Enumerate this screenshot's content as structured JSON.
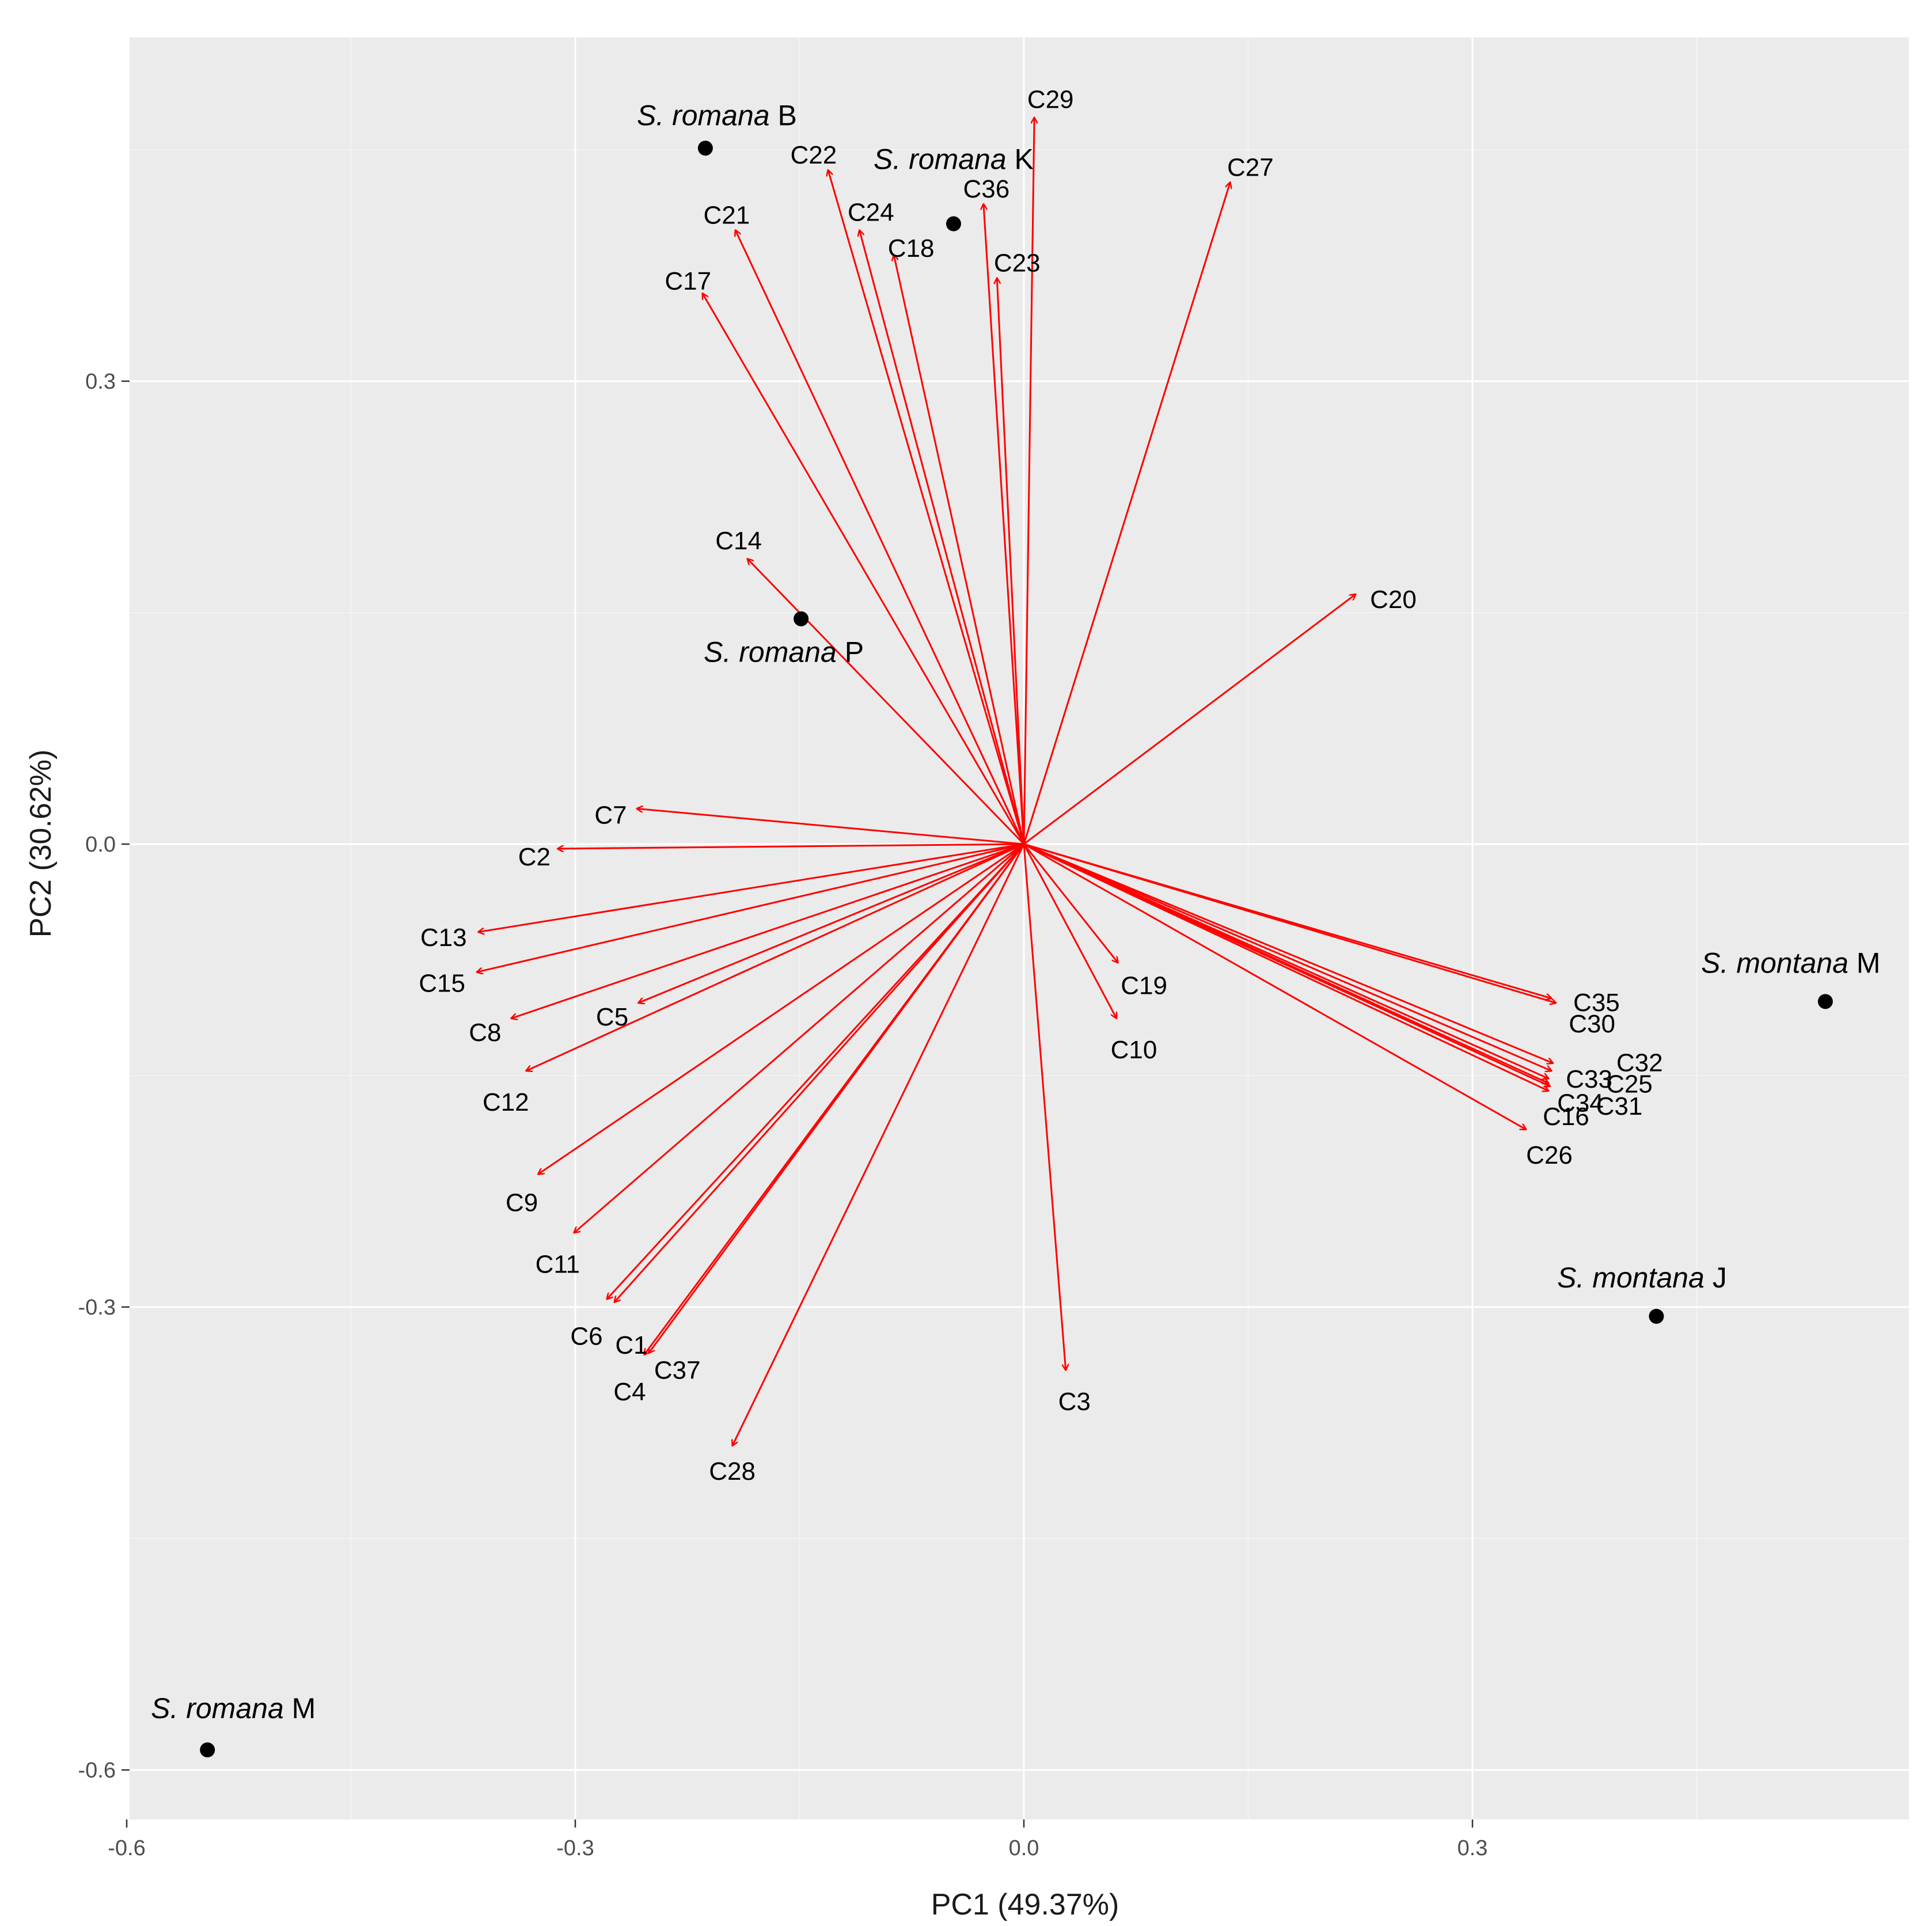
{
  "chart_data": {
    "type": "scatter",
    "subtype": "pca-biplot",
    "xlabel": "PC1 (49.37%)",
    "ylabel": "PC2 (30.62%)",
    "xlim": [
      -0.6,
      0.59
    ],
    "ylim": [
      -0.64,
      0.525
    ],
    "x_ticks": [
      {
        "value": -0.6,
        "label": "-0.6"
      },
      {
        "value": -0.3,
        "label": "-0.3"
      },
      {
        "value": 0.0,
        "label": "0.0"
      },
      {
        "value": 0.3,
        "label": "0.3"
      }
    ],
    "y_ticks": [
      {
        "value": -0.6,
        "label": "-0.6"
      },
      {
        "value": -0.3,
        "label": "-0.3"
      },
      {
        "value": 0.0,
        "label": "0.0"
      },
      {
        "value": 0.3,
        "label": "0.3"
      }
    ],
    "grid": true,
    "arrow_color": "#ff0000",
    "point_color": "#000000",
    "panel_color": "#ebebeb",
    "samples": [
      {
        "species": "S. romana",
        "code": "B",
        "x": -0.213,
        "y": 0.451
      },
      {
        "species": "S. romana",
        "code": "K",
        "x": -0.047,
        "y": 0.402
      },
      {
        "species": "S. romana",
        "code": "P",
        "x": -0.149,
        "y": 0.146
      },
      {
        "species": "S. romana",
        "code": "M",
        "x": -0.546,
        "y": -0.587
      },
      {
        "species": "S. montana",
        "code": "M",
        "x": 0.536,
        "y": -0.102
      },
      {
        "species": "S. montana",
        "code": "J",
        "x": 0.423,
        "y": -0.306
      }
    ],
    "loadings": [
      {
        "name": "C1",
        "x": -0.274,
        "y": -0.297
      },
      {
        "name": "C2",
        "x": -0.312,
        "y": -0.003
      },
      {
        "name": "C3",
        "x": 0.028,
        "y": -0.341
      },
      {
        "name": "C4",
        "x": -0.254,
        "y": -0.331
      },
      {
        "name": "C5",
        "x": -0.258,
        "y": -0.103
      },
      {
        "name": "C6",
        "x": -0.279,
        "y": -0.295
      },
      {
        "name": "C7",
        "x": -0.259,
        "y": 0.023
      },
      {
        "name": "C8",
        "x": -0.343,
        "y": -0.113
      },
      {
        "name": "C9",
        "x": -0.325,
        "y": -0.214
      },
      {
        "name": "C10",
        "x": 0.062,
        "y": -0.113
      },
      {
        "name": "C11",
        "x": -0.301,
        "y": -0.252
      },
      {
        "name": "C12",
        "x": -0.333,
        "y": -0.147
      },
      {
        "name": "C13",
        "x": -0.365,
        "y": -0.057
      },
      {
        "name": "C14",
        "x": -0.185,
        "y": 0.185
      },
      {
        "name": "C15",
        "x": -0.366,
        "y": -0.083
      },
      {
        "name": "C16",
        "x": 0.351,
        "y": -0.16
      },
      {
        "name": "C17",
        "x": -0.215,
        "y": 0.357
      },
      {
        "name": "C18",
        "x": -0.087,
        "y": 0.382
      },
      {
        "name": "C19",
        "x": 0.063,
        "y": -0.077
      },
      {
        "name": "C20",
        "x": 0.222,
        "y": 0.162
      },
      {
        "name": "C21",
        "x": -0.193,
        "y": 0.398
      },
      {
        "name": "C22",
        "x": -0.131,
        "y": 0.437
      },
      {
        "name": "C23",
        "x": -0.018,
        "y": 0.367
      },
      {
        "name": "C24",
        "x": -0.11,
        "y": 0.398
      },
      {
        "name": "C25",
        "x": 0.351,
        "y": -0.152
      },
      {
        "name": "C26",
        "x": 0.336,
        "y": -0.185
      },
      {
        "name": "C27",
        "x": 0.138,
        "y": 0.429
      },
      {
        "name": "C28",
        "x": -0.195,
        "y": -0.39
      },
      {
        "name": "C29",
        "x": 0.007,
        "y": 0.471
      },
      {
        "name": "C30",
        "x": 0.353,
        "y": -0.1
      },
      {
        "name": "C31",
        "x": 0.352,
        "y": -0.157
      },
      {
        "name": "C32",
        "x": 0.354,
        "y": -0.142
      },
      {
        "name": "C33",
        "x": 0.353,
        "y": -0.147
      },
      {
        "name": "C34",
        "x": 0.351,
        "y": -0.155
      },
      {
        "name": "C35",
        "x": 0.356,
        "y": -0.103
      },
      {
        "name": "C36",
        "x": -0.027,
        "y": 0.415
      },
      {
        "name": "C37",
        "x": -0.251,
        "y": -0.33
      }
    ]
  }
}
